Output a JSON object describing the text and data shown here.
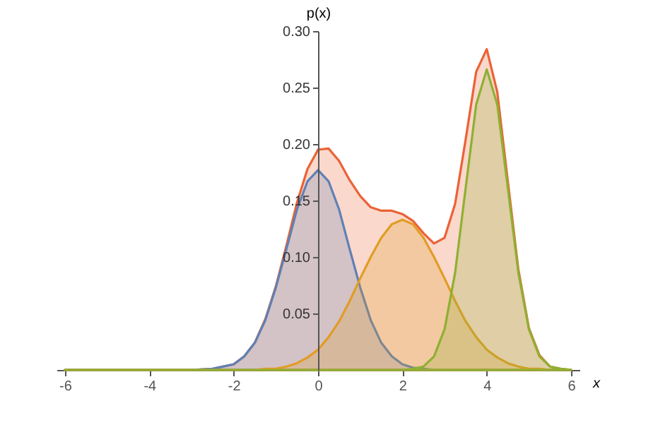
{
  "chart_data": {
    "type": "area",
    "xlabel": "x",
    "ylabel": "p(x)",
    "x": [
      -6,
      -5,
      -4,
      -3,
      -2.5,
      -2,
      -1.75,
      -1.5,
      -1.25,
      -1,
      -0.75,
      -0.5,
      -0.25,
      0,
      0.25,
      0.5,
      0.75,
      1,
      1.25,
      1.5,
      1.75,
      2,
      2.25,
      2.5,
      2.75,
      3,
      3.25,
      3.5,
      3.75,
      4,
      4.25,
      4.5,
      4.75,
      5,
      5.25,
      5.5,
      5.75,
      6
    ],
    "series": [
      {
        "color": "#eb6235",
        "values": [
          0,
          0,
          0,
          0,
          0.001,
          0.005,
          0.012,
          0.024,
          0.045,
          0.074,
          0.11,
          0.148,
          0.178,
          0.195,
          0.196,
          0.185,
          0.168,
          0.154,
          0.144,
          0.141,
          0.141,
          0.138,
          0.132,
          0.121,
          0.112,
          0.117,
          0.147,
          0.204,
          0.264,
          0.284,
          0.246,
          0.167,
          0.089,
          0.037,
          0.013,
          0.003,
          0.001,
          0
        ]
      },
      {
        "color": "#5e81b5",
        "values": [
          0,
          0,
          0,
          0,
          0.001,
          0.005,
          0.012,
          0.024,
          0.044,
          0.073,
          0.107,
          0.142,
          0.167,
          0.177,
          0.167,
          0.142,
          0.107,
          0.073,
          0.044,
          0.024,
          0.012,
          0.005,
          0.002,
          0.001,
          0,
          0,
          0,
          0,
          0,
          0,
          0,
          0,
          0,
          0,
          0,
          0,
          0,
          0
        ]
      },
      {
        "color": "#e19c24",
        "values": [
          0,
          0,
          0,
          0,
          0,
          0,
          0,
          0,
          0.001,
          0.001,
          0.003,
          0.006,
          0.011,
          0.018,
          0.029,
          0.043,
          0.061,
          0.081,
          0.1,
          0.117,
          0.129,
          0.133,
          0.129,
          0.117,
          0.1,
          0.081,
          0.061,
          0.043,
          0.029,
          0.018,
          0.011,
          0.006,
          0.003,
          0.001,
          0.001,
          0,
          0,
          0
        ]
      },
      {
        "color": "#8fb032",
        "values": [
          0,
          0,
          0,
          0,
          0,
          0,
          0,
          0,
          0,
          0,
          0,
          0,
          0,
          0,
          0,
          0,
          0,
          0,
          0,
          0,
          0,
          0,
          0.001,
          0.003,
          0.012,
          0.036,
          0.086,
          0.161,
          0.235,
          0.266,
          0.235,
          0.161,
          0.086,
          0.036,
          0.012,
          0.003,
          0.001,
          0
        ]
      }
    ],
    "xlim": [
      -6.2,
      6.2
    ],
    "ylim": [
      0,
      0.3
    ],
    "xticks": [
      -6,
      -4,
      -2,
      0,
      2,
      4,
      6
    ],
    "yticks": [
      0.05,
      {
        "value": 0.1,
        "label": "0.10"
      },
      0.15,
      {
        "value": 0.2,
        "label": "0.20"
      },
      0.25,
      {
        "value": 0.3,
        "label": "0.30"
      }
    ]
  }
}
